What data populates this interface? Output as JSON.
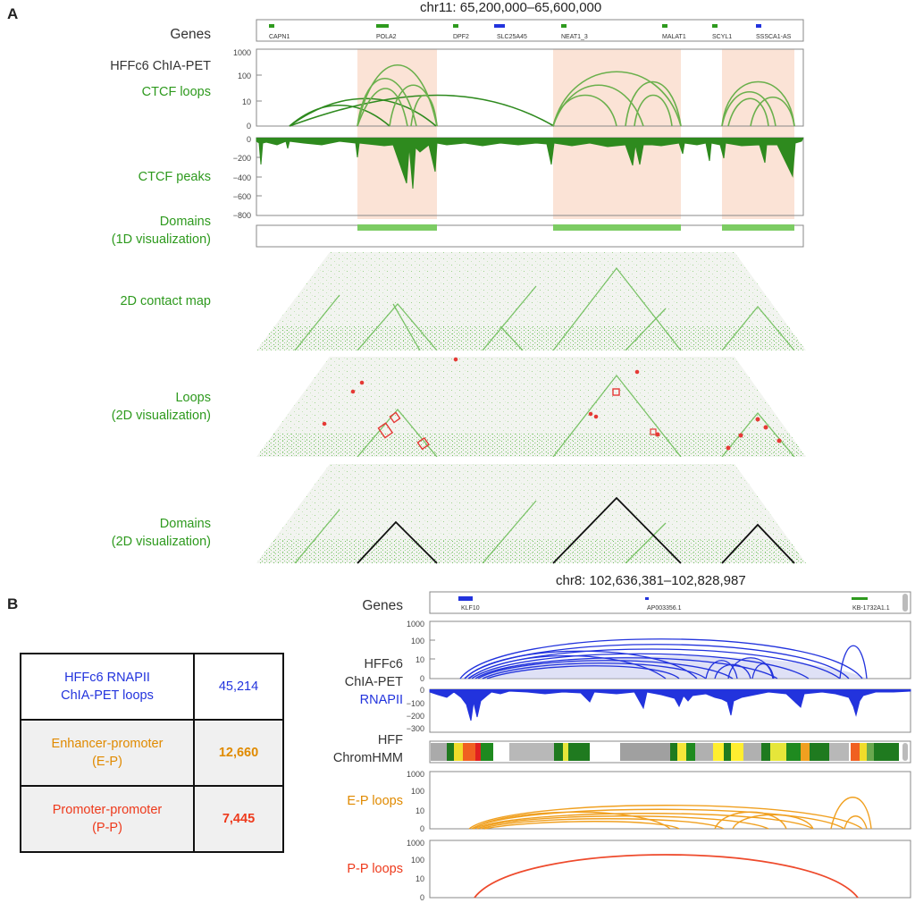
{
  "panelA": {
    "letter": "A",
    "title": "chr11: 65,200,000–65,600,000",
    "labels": {
      "genes": "Genes",
      "chiapet": "HFFc6 ChIA-PET",
      "ctcf_loops": "CTCF loops",
      "ctcf_peaks": "CTCF peaks",
      "domains_1d_1": "Domains",
      "domains_1d_2": "(1D visualization)",
      "contact_map": "2D contact map",
      "loops_2d_1": "Loops",
      "loops_2d_2": "(2D visualization)",
      "domains_2d_1": "Domains",
      "domains_2d_2": "(2D visualization)"
    },
    "genes": [
      "CAPN1",
      "POLA2",
      "DPF2",
      "SLC25A45",
      "NEAT1_3",
      "MALAT1",
      "SCYL1",
      "SSSCA1-AS"
    ],
    "loop_ticks": [
      "1000",
      "100",
      "10",
      "0"
    ],
    "peak_ticks": [
      "0",
      "−200",
      "−400",
      "−600",
      "−800"
    ],
    "colors": {
      "green": "#2e9a1e",
      "loop": "#6ab04c",
      "highlight": "#fbe3d6",
      "domain_bar": "#7ccc63"
    }
  },
  "panelB": {
    "letter": "B",
    "title": "chr8: 102,636,381–102,828,987",
    "labels": {
      "genes": "Genes",
      "chiapet_1": "HFFc6",
      "chiapet_2": "ChIA-PET",
      "rnapii": "RNAPII",
      "hmm_1": "HFF",
      "hmm_2": "ChromHMM",
      "ep": "E-P loops",
      "pp": "P-P loops"
    },
    "genes": [
      "KLF10",
      "AP003356.1",
      "KB-1732A1.1"
    ],
    "loop_ticks": [
      "1000",
      "100",
      "10",
      "0"
    ],
    "rnapii_ticks": [
      "0",
      "−100",
      "−200",
      "−300"
    ],
    "table": [
      {
        "label_1": "HFFc6 RNAPII",
        "label_2": "ChIA-PET loops",
        "value": "45,214"
      },
      {
        "label_1": "Enhancer-promoter",
        "label_2": "(E-P)",
        "value": "12,660"
      },
      {
        "label_1": "Promoter-promoter",
        "label_2": "(P-P)",
        "value": "7,445"
      }
    ],
    "colors": {
      "blue": "#2233dd",
      "orange": "#f0a020",
      "red": "#ee4a2c"
    }
  }
}
